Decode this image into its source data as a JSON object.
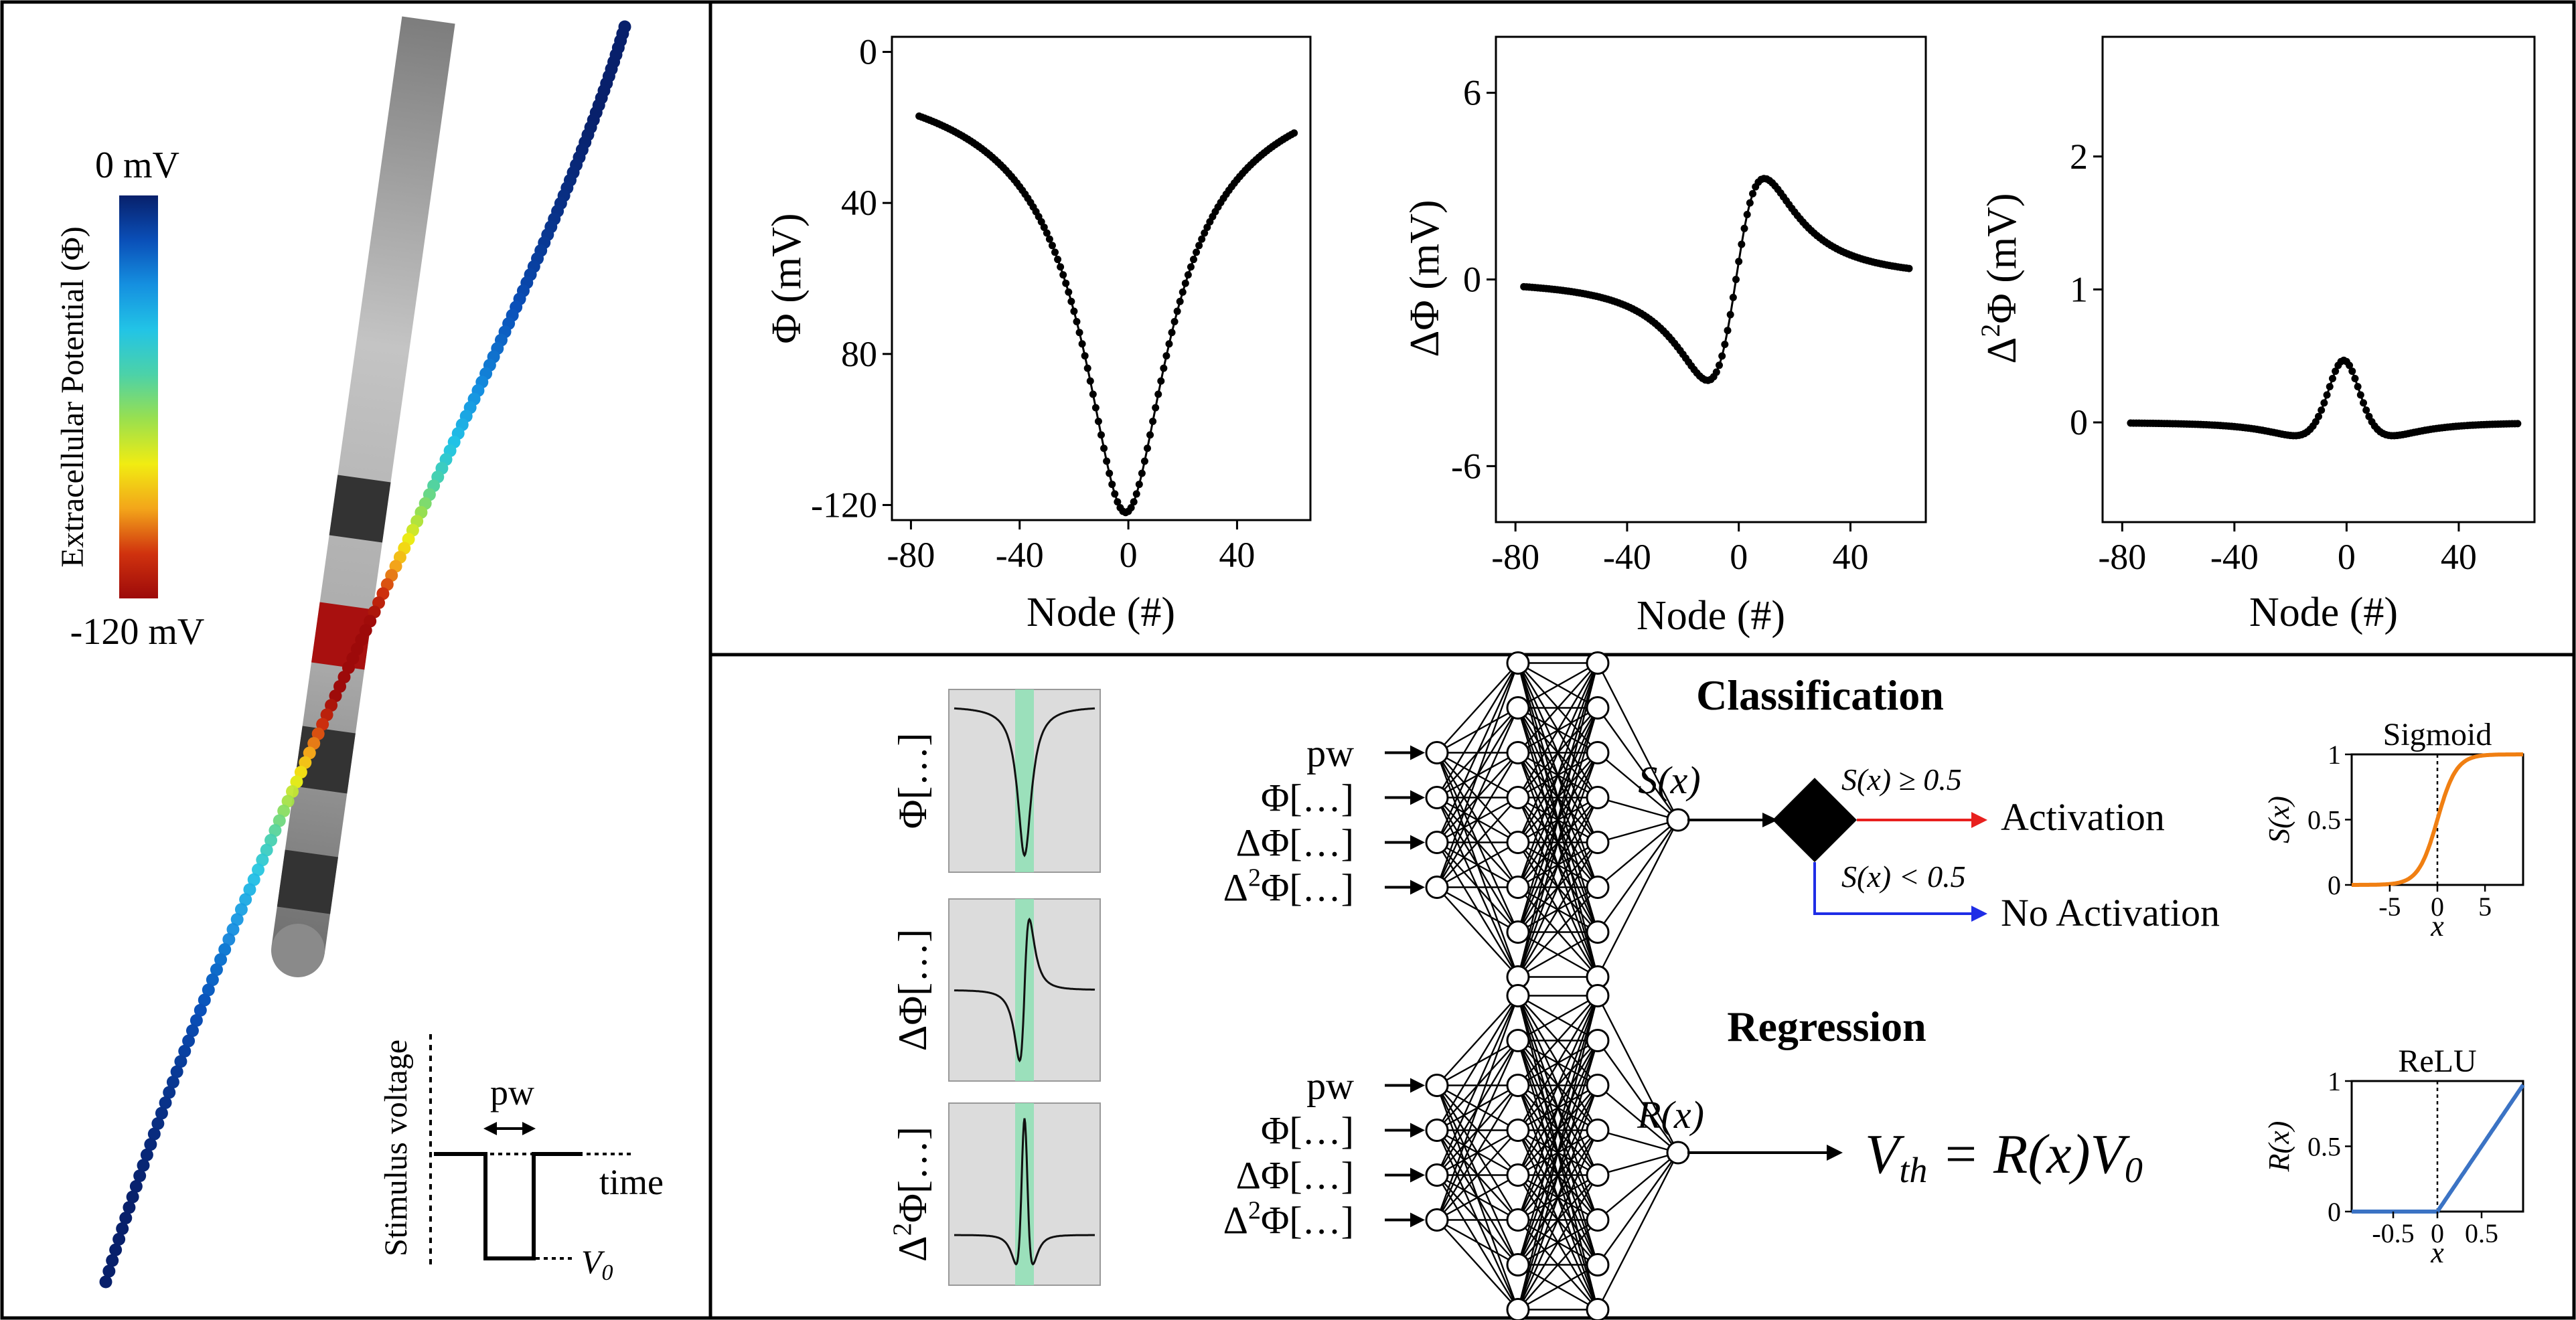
{
  "colorbar": {
    "top_label": "0 mV",
    "bottom_label": "-120 mV",
    "axis_label": "Extracellular Potential (Φ)",
    "colors": [
      "#08206b",
      "#0a4fb8",
      "#1590e0",
      "#22c4e6",
      "#4cd2a8",
      "#9ae04e",
      "#f1ec12",
      "#f3a51a",
      "#d0320e",
      "#9d0a0a"
    ]
  },
  "electrode": {
    "shaft_color": "#a6a6a6",
    "contact_color": "#333333",
    "active_contact_color": "#a8100f"
  },
  "stimulus": {
    "ylabel": "Stimulus voltage",
    "xlabel": "time",
    "pw_label": "pw",
    "v0_label": "V",
    "v0_sub": "0"
  },
  "plots": {
    "xlabel": "Node (#)",
    "phi": {
      "ylabel": "Φ (mV)",
      "xticks": [
        "-80",
        "-40",
        "0",
        "40"
      ],
      "yticks": [
        "0",
        "40",
        "80",
        "-120"
      ]
    },
    "dphi": {
      "ylabel_pre": "ΔΦ (mV)",
      "xticks": [
        "-80",
        "-40",
        "0",
        "40"
      ],
      "yticks": [
        "6",
        "0",
        "-6"
      ]
    },
    "d2phi": {
      "ylabel_pre": "Δ",
      "ylabel_sup": "2",
      "ylabel_post": "Φ (mV)",
      "xticks": [
        "-80",
        "-40",
        "0",
        "40"
      ],
      "yticks": [
        "2",
        "1",
        "0"
      ]
    }
  },
  "thumbnails": {
    "labels": [
      {
        "pre": "Φ[…]",
        "sup": "",
        "post": ""
      },
      {
        "pre": "ΔΦ[…]",
        "sup": "",
        "post": ""
      },
      {
        "pre": "Δ",
        "sup": "2",
        "post": "Φ[…]"
      }
    ],
    "bg_color": "#dcdcdc",
    "highlight_color": "#8fe0b5"
  },
  "classification": {
    "title": "Classification",
    "inputs": [
      {
        "pre": "pw",
        "sup": "",
        "post": ""
      },
      {
        "pre": "Φ[…]",
        "sup": "",
        "post": ""
      },
      {
        "pre": "ΔΦ[…]",
        "sup": "",
        "post": ""
      },
      {
        "pre": "Δ",
        "sup": "2",
        "post": "Φ[…]"
      }
    ],
    "output": "S(x)",
    "cond_pos": "S(x) ≥ 0.5",
    "cond_neg": "S(x) < 0.5",
    "result_pos": "Activation",
    "result_neg": "No Activation",
    "pos_color": "#e8201e",
    "neg_color": "#1f2de6"
  },
  "regression": {
    "title": "Regression",
    "inputs": [
      {
        "pre": "pw",
        "sup": "",
        "post": ""
      },
      {
        "pre": "Φ[…]",
        "sup": "",
        "post": ""
      },
      {
        "pre": "ΔΦ[…]",
        "sup": "",
        "post": ""
      },
      {
        "pre": "Δ",
        "sup": "2",
        "post": "Φ[…]"
      }
    ],
    "output": "R(x)",
    "equation": {
      "lhs": "V",
      "lhs_sub": "th",
      "mid": " = R(x)V",
      "rhs_sub": "0"
    }
  },
  "sigmoid": {
    "title": "Sigmoid",
    "xlabel": "x",
    "ylabel": "S(x)",
    "xticks": [
      "-5",
      "0",
      "5"
    ],
    "yticks": [
      "1",
      "0.5",
      "0"
    ],
    "color": "#f07f12"
  },
  "relu": {
    "title": "ReLU",
    "xlabel": "x",
    "ylabel": "R(x)",
    "xticks": [
      "-0.5",
      "0",
      "0.5"
    ],
    "yticks": [
      "1",
      "0.5",
      "0"
    ],
    "color": "#3b73c4"
  }
}
